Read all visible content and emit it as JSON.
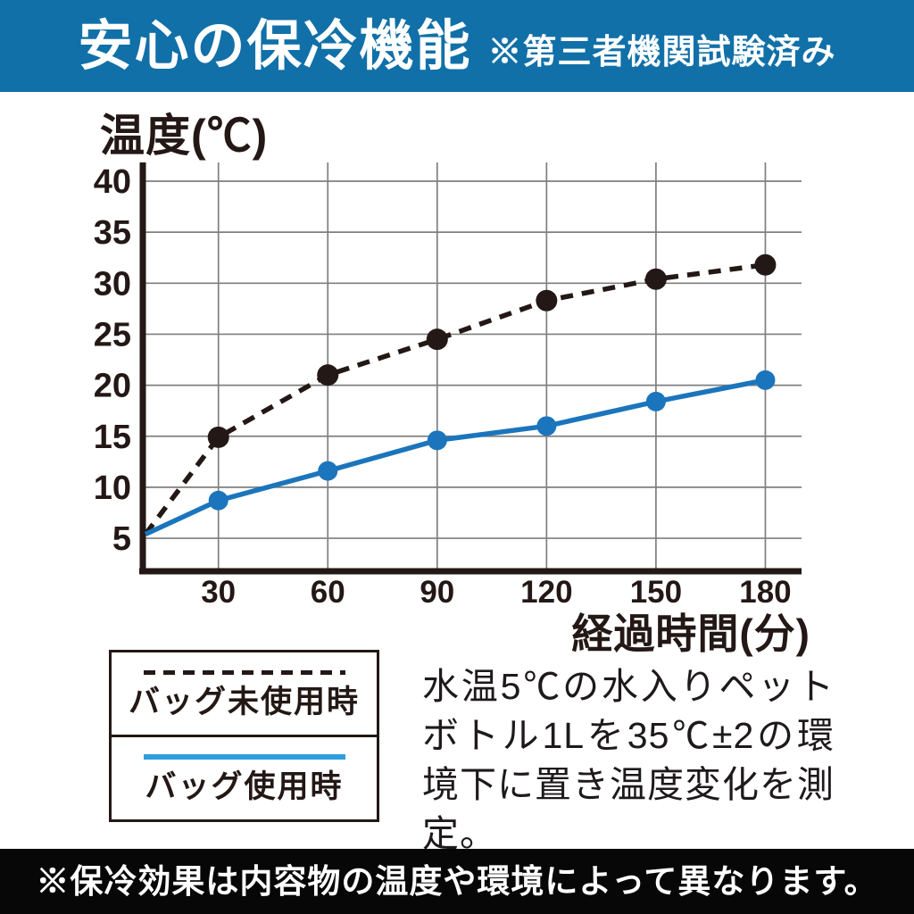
{
  "header": {
    "title": "安心の保冷機能",
    "note": "※第三者機関試験済み"
  },
  "chart_data": {
    "type": "line",
    "ylabel": "温度(℃)",
    "xlabel": "経過時間(分)",
    "x_ticks": [
      30,
      60,
      90,
      120,
      150,
      180
    ],
    "y_ticks": [
      40,
      35,
      30,
      25,
      20,
      15,
      10,
      5
    ],
    "ylim": [
      5,
      40
    ],
    "xlim": [
      0,
      180
    ],
    "grid": true,
    "legend_position": "bottom-left",
    "series": [
      {
        "name": "バッグ未使用時",
        "line_style": "dashed",
        "color": "#231815",
        "x": [
          0,
          30,
          60,
          90,
          120,
          150,
          180
        ],
        "values": [
          5.4,
          14.9,
          21.0,
          24.5,
          28.3,
          30.4,
          31.8
        ]
      },
      {
        "name": "バッグ使用時",
        "line_style": "solid",
        "color": "#1b75bc",
        "x": [
          0,
          30,
          60,
          90,
          120,
          150,
          180
        ],
        "values": [
          5.4,
          8.7,
          11.6,
          14.6,
          16.0,
          18.4,
          20.5
        ]
      }
    ]
  },
  "legend": {
    "items": [
      {
        "label": "バッグ未使用時",
        "line_style": "dashed",
        "color": "#231815"
      },
      {
        "label": "バッグ使用時",
        "line_style": "solid",
        "color": "#2f9edd"
      }
    ]
  },
  "description": "水温5℃の水入りペットボトル1Lを35℃±2の環境下に置き温度変化を測定。",
  "footer": {
    "note": "※保冷効果は内容物の温度や環境によって異なります。"
  },
  "colors": {
    "header_bg": "#1170a8",
    "chart_line_blue": "#1b75bc",
    "legend_line_blue": "#2f9edd",
    "ink": "#231815",
    "grid": "#7f7f7f",
    "footer_bg": "#070707"
  }
}
